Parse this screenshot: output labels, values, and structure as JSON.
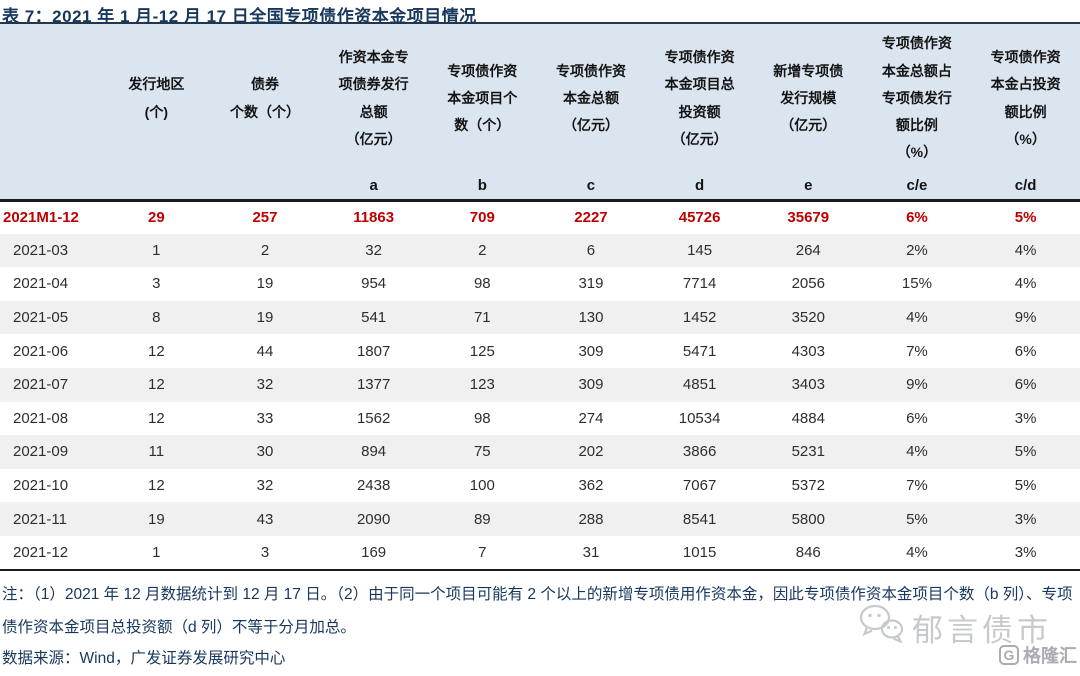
{
  "title": "表 7：2021 年 1 月-12 月 17 日全国专项债作资本金项目情况",
  "table": {
    "columns": [
      "",
      "发行地区\n(个)",
      "债券\n个数（个）",
      "作资本金专\n项债券发行\n总额\n（亿元）",
      "专项债作资\n本金项目个\n数（个）",
      "专项债作资\n本金总额\n（亿元）",
      "专项债作资\n本金项目总\n投资额\n（亿元）",
      "新增专项债\n发行规模\n（亿元）",
      "专项债作资\n本金总额占\n专项债发行\n额比例\n（%）",
      "专项债作资\n本金占投资\n额比例\n（%）"
    ],
    "letter_row": [
      "",
      "",
      "",
      "a",
      "b",
      "c",
      "d",
      "e",
      "c/e",
      "c/d"
    ],
    "rows": [
      {
        "highlight": true,
        "cells": [
          "2021M1-12",
          "29",
          "257",
          "11863",
          "709",
          "2227",
          "45726",
          "35679",
          "6%",
          "5%"
        ]
      },
      {
        "highlight": false,
        "cells": [
          "2021-03",
          "1",
          "2",
          "32",
          "2",
          "6",
          "145",
          "264",
          "2%",
          "4%"
        ]
      },
      {
        "highlight": false,
        "cells": [
          "2021-04",
          "3",
          "19",
          "954",
          "98",
          "319",
          "7714",
          "2056",
          "15%",
          "4%"
        ]
      },
      {
        "highlight": false,
        "cells": [
          "2021-05",
          "8",
          "19",
          "541",
          "71",
          "130",
          "1452",
          "3520",
          "4%",
          "9%"
        ]
      },
      {
        "highlight": false,
        "cells": [
          "2021-06",
          "12",
          "44",
          "1807",
          "125",
          "309",
          "5471",
          "4303",
          "7%",
          "6%"
        ]
      },
      {
        "highlight": false,
        "cells": [
          "2021-07",
          "12",
          "32",
          "1377",
          "123",
          "309",
          "4851",
          "3403",
          "9%",
          "6%"
        ]
      },
      {
        "highlight": false,
        "cells": [
          "2021-08",
          "12",
          "33",
          "1562",
          "98",
          "274",
          "10534",
          "4884",
          "6%",
          "3%"
        ]
      },
      {
        "highlight": false,
        "cells": [
          "2021-09",
          "11",
          "30",
          "894",
          "75",
          "202",
          "3866",
          "5231",
          "4%",
          "5%"
        ]
      },
      {
        "highlight": false,
        "cells": [
          "2021-10",
          "12",
          "32",
          "2438",
          "100",
          "362",
          "7067",
          "5372",
          "7%",
          "5%"
        ]
      },
      {
        "highlight": false,
        "cells": [
          "2021-11",
          "19",
          "43",
          "2090",
          "89",
          "288",
          "8541",
          "5800",
          "5%",
          "3%"
        ]
      },
      {
        "highlight": false,
        "cells": [
          "2021-12",
          "1",
          "3",
          "169",
          "7",
          "31",
          "1015",
          "846",
          "4%",
          "3%"
        ]
      }
    ]
  },
  "notes": {
    "note": "注：（1）2021 年 12 月数据统计到 12 月 17 日。（2）由于同一个项目可能有 2 个以上的新增专项债用作资本金，因此专项债作资本金项目个数（b 列）、专项债作资本金项目总投资额（d 列）不等于分月加总。",
    "source": "数据来源：Wind，广发证券发展研究中心"
  },
  "watermarks": {
    "wechat_label": "郁言债市",
    "gelonghui_icon_letter": "G",
    "gelonghui_label": "格隆汇"
  },
  "colors": {
    "title_navy": "#17375d",
    "header_bg": "#dbe5f0",
    "highlight_red": "#c00000",
    "stripe_gray": "#f0f0f0",
    "note_navy": "#17375d",
    "watermark_light_gray": "#c7cacc",
    "watermark_gray": "#a9adb1"
  }
}
